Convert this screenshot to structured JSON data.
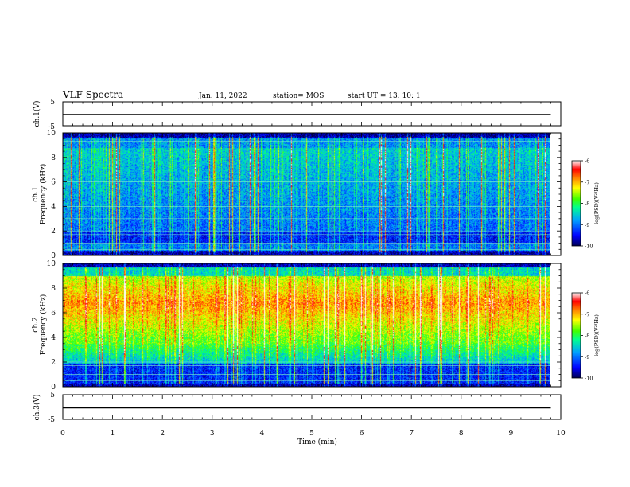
{
  "header": {
    "title": "VLF Spectra",
    "date": "Jan. 11, 2022",
    "station": "station= MOS",
    "start_ut": "start  UT  =   13: 10: 1"
  },
  "chart_data": [
    {
      "type": "line",
      "panel": "ch1-waveform",
      "ylabel": "ch.1(V)",
      "ylim": [
        -5,
        5
      ],
      "y_tick_labels": [
        "5",
        "-5"
      ],
      "series": [
        {
          "x": [
            0,
            9.8
          ],
          "y": [
            0,
            0
          ],
          "color": "#000000"
        }
      ]
    },
    {
      "type": "heatmap",
      "panel": "ch1-spectrogram",
      "ylabel": "ch.1\nFrequency (kHz)",
      "ylim": [
        0,
        10
      ],
      "xlim": [
        0,
        10
      ],
      "data_extent_x": 9.8,
      "y_tick_labels": [
        "0",
        "2",
        "4",
        "6",
        "8",
        "10"
      ],
      "colorbar": {
        "label": "log(PSD)(V²/Hz)",
        "range": [
          -10,
          -6
        ],
        "tick_labels": [
          "-6",
          "-7",
          "-8",
          "-9",
          "-10"
        ]
      },
      "horizontal_lines_khz": [
        0.5,
        1.0,
        1.7,
        2.0,
        3.0,
        4.0,
        6.0,
        8.6,
        9.3
      ]
    },
    {
      "type": "heatmap",
      "panel": "ch2-spectrogram",
      "ylabel": "ch.2\nFrequency (kHz)",
      "ylim": [
        0,
        10
      ],
      "xlim": [
        0,
        10
      ],
      "data_extent_x": 9.8,
      "y_tick_labels": [
        "0",
        "2",
        "4",
        "6",
        "8",
        "10"
      ],
      "colorbar": {
        "label": "log(PSD)(V²/Hz)",
        "range": [
          -10,
          -6
        ],
        "tick_labels": [
          "-6",
          "-7",
          "-8",
          "-9",
          "-10"
        ]
      },
      "horizontal_lines_khz": [
        0.5,
        1.0,
        1.7,
        2.0
      ]
    },
    {
      "type": "line",
      "panel": "ch3-waveform",
      "ylabel": "ch.3(V)",
      "ylim": [
        -5,
        5
      ],
      "xlabel": "Time  (min)",
      "xlim": [
        0,
        10
      ],
      "x_tick_labels": [
        "0",
        "1",
        "2",
        "3",
        "4",
        "5",
        "6",
        "7",
        "8",
        "9",
        "10"
      ],
      "y_tick_labels": [
        "5",
        "-5"
      ],
      "series": [
        {
          "x": [
            0,
            9.8
          ],
          "y": [
            0,
            0
          ],
          "color": "#000000"
        }
      ]
    }
  ]
}
